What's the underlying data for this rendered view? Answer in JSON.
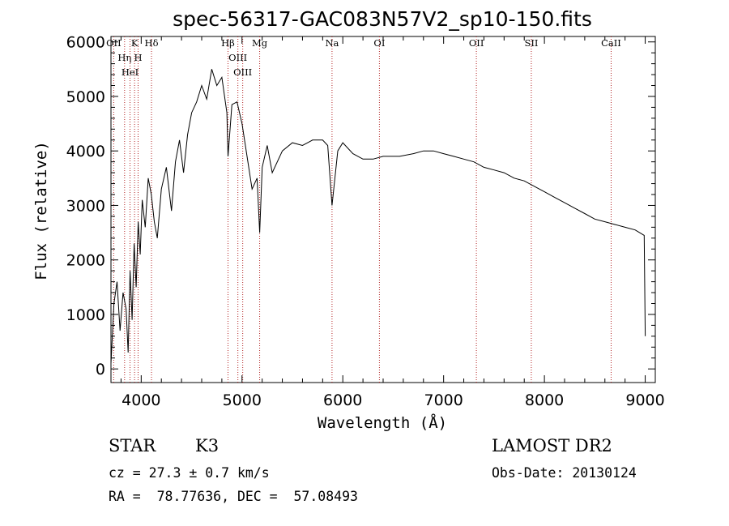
{
  "chart_data": {
    "type": "line",
    "title": "spec-56317-GAC083N57V2_sp10-150.fits",
    "xlabel": "Wavelength (Å)",
    "ylabel": "Flux (relative)",
    "xlim": [
      3700,
      9100
    ],
    "ylim": [
      -250,
      6100
    ],
    "x_ticks": [
      4000,
      5000,
      6000,
      7000,
      8000,
      9000
    ],
    "y_ticks": [
      0,
      1000,
      2000,
      3000,
      4000,
      5000,
      6000
    ],
    "grid": false,
    "series": [
      {
        "color": "#000000",
        "x": [
          3700,
          3730,
          3760,
          3790,
          3820,
          3850,
          3870,
          3890,
          3910,
          3930,
          3950,
          3970,
          3990,
          4010,
          4040,
          4070,
          4100,
          4130,
          4160,
          4200,
          4250,
          4300,
          4340,
          4380,
          4420,
          4460,
          4500,
          4550,
          4600,
          4650,
          4700,
          4750,
          4800,
          4850,
          4861,
          4900,
          4950,
          5000,
          5050,
          5100,
          5150,
          5175,
          5200,
          5250,
          5300,
          5400,
          5500,
          5600,
          5700,
          5800,
          5850,
          5893,
          5950,
          6000,
          6100,
          6200,
          6300,
          6400,
          6563,
          6700,
          6800,
          6900,
          7000,
          7100,
          7200,
          7300,
          7400,
          7500,
          7600,
          7700,
          7800,
          7900,
          8000,
          8100,
          8200,
          8300,
          8400,
          8500,
          8600,
          8700,
          8800,
          8900,
          8990,
          9000
        ],
        "y": [
          100,
          1200,
          1600,
          700,
          1400,
          1100,
          300,
          1800,
          900,
          2300,
          1500,
          2700,
          2100,
          3100,
          2600,
          3500,
          3200,
          2700,
          2400,
          3300,
          3700,
          2900,
          3800,
          4200,
          3600,
          4300,
          4700,
          4900,
          5200,
          4950,
          5500,
          5200,
          5350,
          4700,
          3900,
          4850,
          4900,
          4500,
          3900,
          3300,
          3500,
          2500,
          3700,
          4100,
          3600,
          4000,
          4150,
          4100,
          4200,
          4200,
          4100,
          3000,
          4000,
          4150,
          3950,
          3850,
          3850,
          3900,
          3900,
          3950,
          4000,
          4000,
          3950,
          3900,
          3850,
          3800,
          3700,
          3650,
          3600,
          3500,
          3450,
          3350,
          3250,
          3150,
          3050,
          2950,
          2850,
          2750,
          2700,
          2650,
          2600,
          2550,
          2450,
          600
        ]
      }
    ],
    "line_markers": [
      {
        "label": "OII",
        "x": 3727
      },
      {
        "label": "Hη",
        "x": 3835
      },
      {
        "label": "HeI",
        "x": 3889
      },
      {
        "label": "K",
        "x": 3934
      },
      {
        "label": "H",
        "x": 3969
      },
      {
        "label": "Hδ",
        "x": 4102
      },
      {
        "label": "Hβ",
        "x": 4861
      },
      {
        "label": "OIII",
        "x": 4959
      },
      {
        "label": "OIII",
        "x": 5007
      },
      {
        "label": "Mg",
        "x": 5175
      },
      {
        "label": "Na",
        "x": 5893
      },
      {
        "label": "OI",
        "x": 6363
      },
      {
        "label": "OII",
        "x": 7325
      },
      {
        "label": "SII",
        "x": 7870
      },
      {
        "label": "CaII",
        "x": 8662
      }
    ],
    "marker_color": "#b22222"
  },
  "info": {
    "object_class": "STAR",
    "subclass": "K3",
    "cz": "cz = 27.3 ± 0.7 km/s",
    "radec": "RA =  78.77636, DEC =  57.08493",
    "survey": "LAMOST DR2",
    "obs_date": "Obs-Date: 20130124"
  }
}
